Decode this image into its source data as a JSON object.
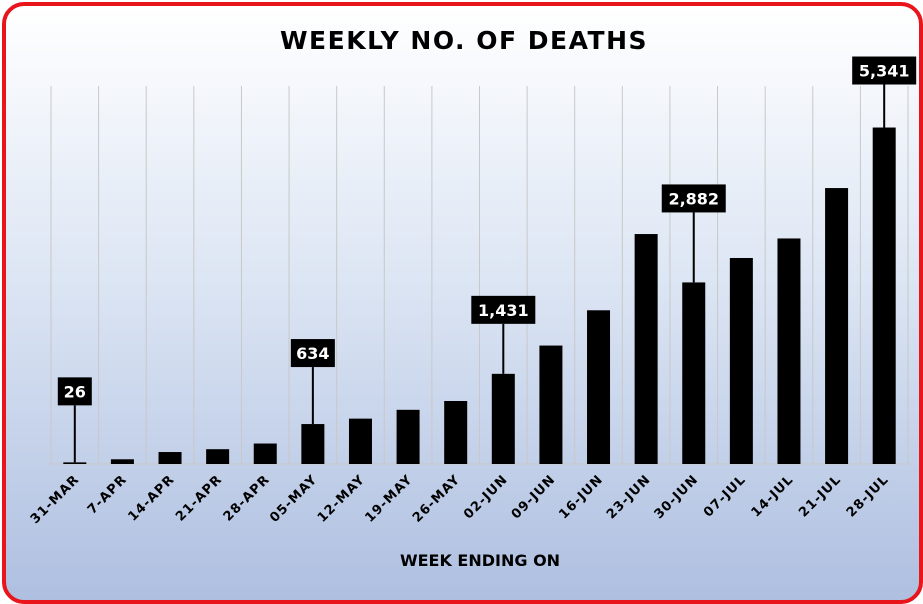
{
  "chart_data": {
    "type": "bar",
    "title": "WEEKLY NO. OF DEATHS",
    "xlabel": "WEEK ENDING ON",
    "ylabel": "",
    "categories": [
      "31-MAR",
      "7-APR",
      "14-APR",
      "21-APR",
      "28-APR",
      "05-MAY",
      "12-MAY",
      "19-MAY",
      "26-MAY",
      "02-JUN",
      "09-JUN",
      "16-JUN",
      "23-JUN",
      "30-JUN",
      "07-JUL",
      "14-JUL",
      "21-JUL",
      "28-JUL"
    ],
    "values": [
      26,
      75,
      190,
      235,
      325,
      634,
      720,
      860,
      1000,
      1431,
      1880,
      2440,
      3650,
      2882,
      3270,
      3580,
      4380,
      5341
    ],
    "ylim": [
      0,
      6000
    ],
    "grid": "vertical",
    "legend": "none",
    "bar_color": "#000000",
    "data_labels": [
      {
        "category": "31-MAR",
        "text": "26"
      },
      {
        "category": "05-MAY",
        "text": "634"
      },
      {
        "category": "02-JUN",
        "text": "1,431"
      },
      {
        "category": "30-JUN",
        "text": "2,882"
      },
      {
        "category": "28-JUL",
        "text": "5,341"
      }
    ],
    "colors": {
      "frame": "#e8161b",
      "grid": "#c8c8c8",
      "bars": "#000000"
    }
  }
}
